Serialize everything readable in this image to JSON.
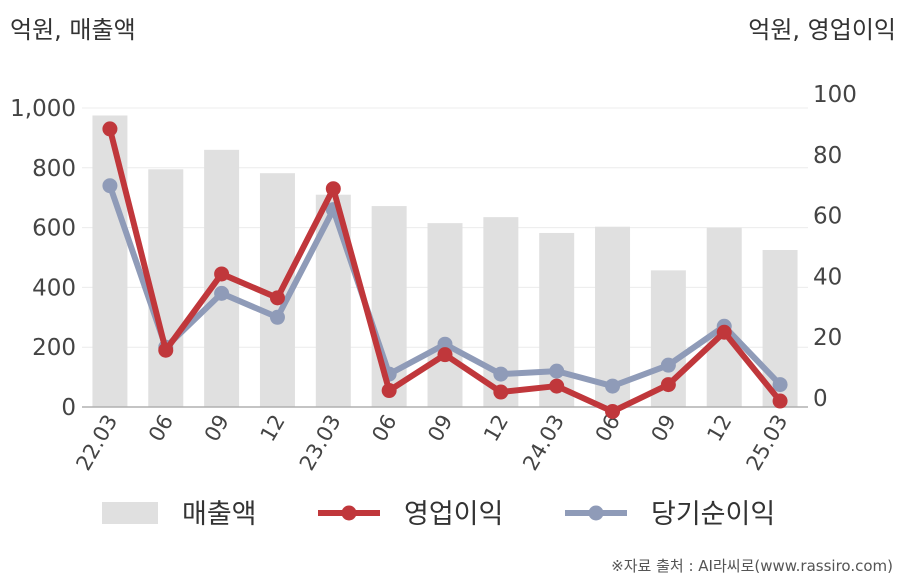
{
  "chart_data": {
    "type": "bar+line",
    "categories": [
      "22.03",
      "06",
      "09",
      "12",
      "23.03",
      "06",
      "09",
      "12",
      "24.03",
      "06",
      "09",
      "12",
      "25.03"
    ],
    "left_unit": "억원, 매출액",
    "right_unit": "억원, 영업이익",
    "left_ylim": [
      0,
      1000
    ],
    "right_ylim": [
      0,
      100
    ],
    "left_ticks": [
      "0",
      "200",
      "400",
      "600",
      "800",
      "1,000"
    ],
    "right_ticks": [
      "0",
      "20",
      "40",
      "60",
      "80",
      "100"
    ],
    "grid": true,
    "legend_position": "bottom",
    "series": [
      {
        "name": "매출액",
        "type": "bar",
        "axis": "left",
        "color": "#e0e0e0",
        "values": [
          975,
          795,
          860,
          782,
          710,
          672,
          615,
          635,
          582,
          603,
          457,
          600,
          525
        ]
      },
      {
        "name": "영업이익",
        "type": "line",
        "axis": "right",
        "color": "#c0373b",
        "values": [
          93,
          19,
          44.5,
          36.5,
          73,
          5.5,
          17.5,
          5,
          7,
          -1.5,
          7.5,
          25,
          2
        ]
      },
      {
        "name": "당기순이익",
        "type": "line",
        "axis": "right",
        "color": "#8f9bb8",
        "values": [
          74,
          20,
          38,
          30,
          66,
          11,
          21,
          11,
          12,
          7,
          14,
          27,
          7.5
        ]
      }
    ],
    "source": "※자료 출처 : AI라씨로(www.rassiro.com)"
  }
}
